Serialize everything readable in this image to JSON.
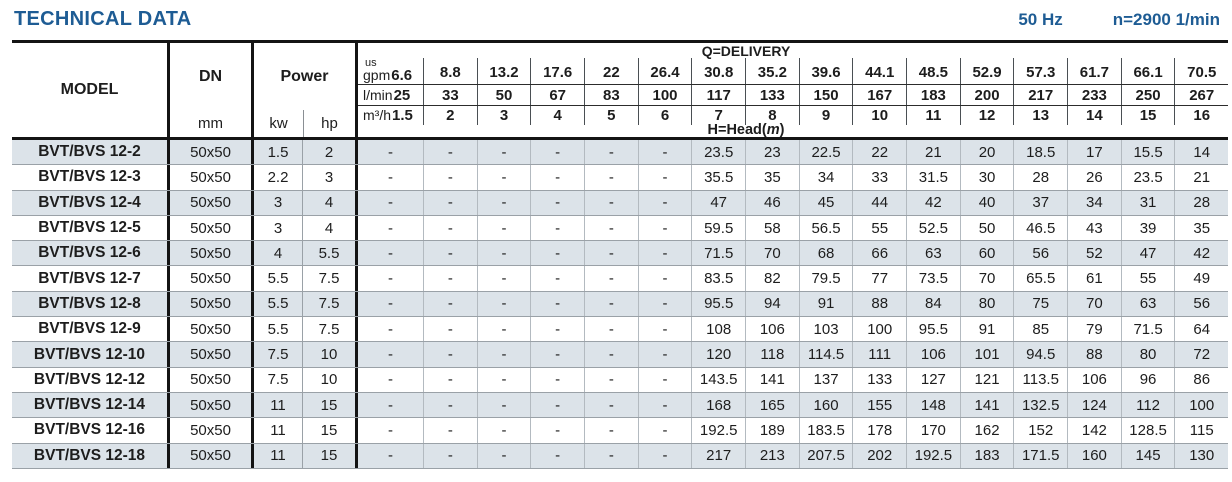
{
  "title": "TECHNICAL DATA",
  "frequency": "50 Hz",
  "speed": "n=2900 1/min",
  "colors": {
    "accent": "#1e5c94",
    "row_shade": "#dce3e9",
    "border": "#141414"
  },
  "table": {
    "col_model": "MODEL",
    "col_dn": "DN",
    "col_power": "Power",
    "unit_mm": "mm",
    "unit_kw": "kw",
    "unit_hp": "hp",
    "delivery_label": "Q=DELIVERY",
    "head_label_pre": "H=Head(",
    "head_label_unit": "m",
    "head_label_post": ")",
    "units": [
      {
        "label_top": "us",
        "label": "gpm",
        "values": [
          "6.6",
          "8.8",
          "13.2",
          "17.6",
          "22",
          "26.4",
          "30.8",
          "35.2",
          "39.6",
          "44.1",
          "48.5",
          "52.9",
          "57.3",
          "61.7",
          "66.1",
          "70.5"
        ]
      },
      {
        "label": "l/min",
        "values": [
          "25",
          "33",
          "50",
          "67",
          "83",
          "100",
          "117",
          "133",
          "150",
          "167",
          "183",
          "200",
          "217",
          "233",
          "250",
          "267"
        ]
      },
      {
        "label": "m³/h",
        "values": [
          "1.5",
          "2",
          "3",
          "4",
          "5",
          "6",
          "7",
          "8",
          "9",
          "10",
          "11",
          "12",
          "13",
          "14",
          "15",
          "16"
        ]
      }
    ],
    "rows": [
      {
        "model": "BVT/BVS 12-2",
        "dn": "50x50",
        "kw": "1.5",
        "hp": "2",
        "head": [
          "-",
          "-",
          "-",
          "-",
          "-",
          "-",
          "23.5",
          "23",
          "22.5",
          "22",
          "21",
          "20",
          "18.5",
          "17",
          "15.5",
          "14"
        ]
      },
      {
        "model": "BVT/BVS 12-3",
        "dn": "50x50",
        "kw": "2.2",
        "hp": "3",
        "head": [
          "-",
          "-",
          "-",
          "-",
          "-",
          "-",
          "35.5",
          "35",
          "34",
          "33",
          "31.5",
          "30",
          "28",
          "26",
          "23.5",
          "21"
        ]
      },
      {
        "model": "BVT/BVS 12-4",
        "dn": "50x50",
        "kw": "3",
        "hp": "4",
        "head": [
          "-",
          "-",
          "-",
          "-",
          "-",
          "-",
          "47",
          "46",
          "45",
          "44",
          "42",
          "40",
          "37",
          "34",
          "31",
          "28"
        ]
      },
      {
        "model": "BVT/BVS 12-5",
        "dn": "50x50",
        "kw": "3",
        "hp": "4",
        "head": [
          "-",
          "-",
          "-",
          "-",
          "-",
          "-",
          "59.5",
          "58",
          "56.5",
          "55",
          "52.5",
          "50",
          "46.5",
          "43",
          "39",
          "35"
        ]
      },
      {
        "model": "BVT/BVS 12-6",
        "dn": "50x50",
        "kw": "4",
        "hp": "5.5",
        "head": [
          "-",
          "-",
          "-",
          "-",
          "-",
          "-",
          "71.5",
          "70",
          "68",
          "66",
          "63",
          "60",
          "56",
          "52",
          "47",
          "42"
        ]
      },
      {
        "model": "BVT/BVS 12-7",
        "dn": "50x50",
        "kw": "5.5",
        "hp": "7.5",
        "head": [
          "-",
          "-",
          "-",
          "-",
          "-",
          "-",
          "83.5",
          "82",
          "79.5",
          "77",
          "73.5",
          "70",
          "65.5",
          "61",
          "55",
          "49"
        ]
      },
      {
        "model": "BVT/BVS 12-8",
        "dn": "50x50",
        "kw": "5.5",
        "hp": "7.5",
        "head": [
          "-",
          "-",
          "-",
          "-",
          "-",
          "-",
          "95.5",
          "94",
          "91",
          "88",
          "84",
          "80",
          "75",
          "70",
          "63",
          "56"
        ]
      },
      {
        "model": "BVT/BVS 12-9",
        "dn": "50x50",
        "kw": "5.5",
        "hp": "7.5",
        "head": [
          "-",
          "-",
          "-",
          "-",
          "-",
          "-",
          "108",
          "106",
          "103",
          "100",
          "95.5",
          "91",
          "85",
          "79",
          "71.5",
          "64"
        ]
      },
      {
        "model": "BVT/BVS 12-10",
        "dn": "50x50",
        "kw": "7.5",
        "hp": "10",
        "head": [
          "-",
          "-",
          "-",
          "-",
          "-",
          "-",
          "120",
          "118",
          "114.5",
          "111",
          "106",
          "101",
          "94.5",
          "88",
          "80",
          "72"
        ]
      },
      {
        "model": "BVT/BVS 12-12",
        "dn": "50x50",
        "kw": "7.5",
        "hp": "10",
        "head": [
          "-",
          "-",
          "-",
          "-",
          "-",
          "-",
          "143.5",
          "141",
          "137",
          "133",
          "127",
          "121",
          "113.5",
          "106",
          "96",
          "86"
        ]
      },
      {
        "model": "BVT/BVS 12-14",
        "dn": "50x50",
        "kw": "11",
        "hp": "15",
        "head": [
          "-",
          "-",
          "-",
          "-",
          "-",
          "-",
          "168",
          "165",
          "160",
          "155",
          "148",
          "141",
          "132.5",
          "124",
          "112",
          "100"
        ]
      },
      {
        "model": "BVT/BVS 12-16",
        "dn": "50x50",
        "kw": "11",
        "hp": "15",
        "head": [
          "-",
          "-",
          "-",
          "-",
          "-",
          "-",
          "192.5",
          "189",
          "183.5",
          "178",
          "170",
          "162",
          "152",
          "142",
          "128.5",
          "115"
        ]
      },
      {
        "model": "BVT/BVS 12-18",
        "dn": "50x50",
        "kw": "11",
        "hp": "15",
        "head": [
          "-",
          "-",
          "-",
          "-",
          "-",
          "-",
          "217",
          "213",
          "207.5",
          "202",
          "192.5",
          "183",
          "171.5",
          "160",
          "145",
          "130"
        ]
      }
    ]
  }
}
